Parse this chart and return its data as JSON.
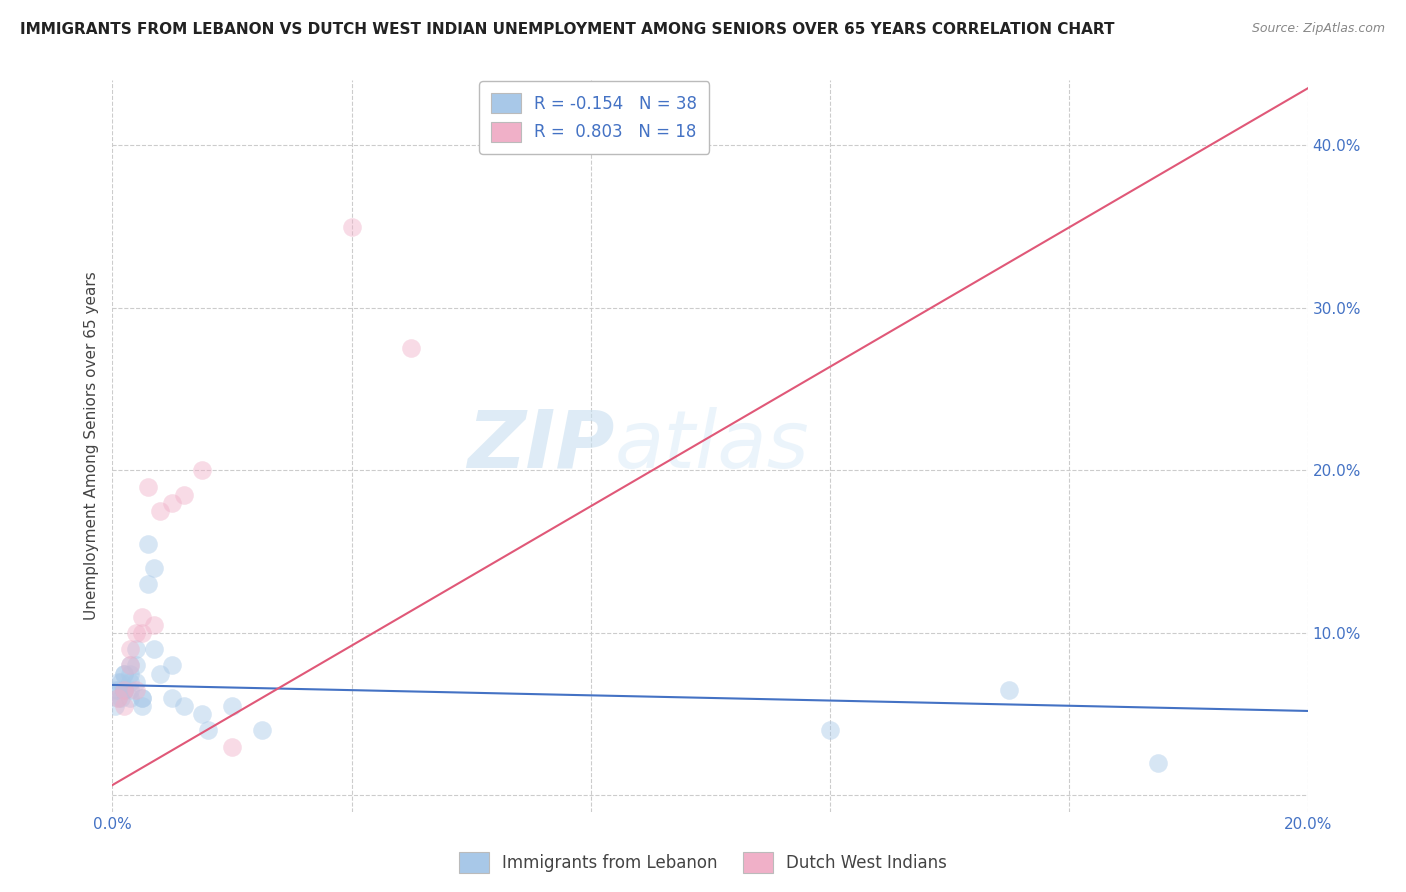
{
  "title": "IMMIGRANTS FROM LEBANON VS DUTCH WEST INDIAN UNEMPLOYMENT AMONG SENIORS OVER 65 YEARS CORRELATION CHART",
  "source": "Source: ZipAtlas.com",
  "ylabel": "Unemployment Among Seniors over 65 years",
  "xlim": [
    0.0,
    0.2
  ],
  "ylim": [
    -0.01,
    0.44
  ],
  "xticks": [
    0.0,
    0.04,
    0.08,
    0.12,
    0.16,
    0.2
  ],
  "yticks": [
    0.0,
    0.1,
    0.2,
    0.3,
    0.4
  ],
  "blue_color": "#a8c8e8",
  "pink_color": "#f0b0c8",
  "blue_line_color": "#4472c4",
  "pink_line_color": "#e05878",
  "background_color": "#ffffff",
  "blue_scatter_x": [
    0.0005,
    0.0005,
    0.001,
    0.001,
    0.001,
    0.0015,
    0.0015,
    0.002,
    0.002,
    0.002,
    0.002,
    0.002,
    0.003,
    0.003,
    0.003,
    0.003,
    0.003,
    0.004,
    0.004,
    0.004,
    0.005,
    0.005,
    0.005,
    0.006,
    0.006,
    0.007,
    0.007,
    0.008,
    0.01,
    0.01,
    0.012,
    0.015,
    0.016,
    0.02,
    0.025,
    0.12,
    0.15,
    0.175
  ],
  "blue_scatter_y": [
    0.055,
    0.065,
    0.06,
    0.065,
    0.07,
    0.06,
    0.07,
    0.065,
    0.065,
    0.075,
    0.075,
    0.065,
    0.06,
    0.065,
    0.07,
    0.075,
    0.08,
    0.07,
    0.08,
    0.09,
    0.06,
    0.06,
    0.055,
    0.13,
    0.155,
    0.14,
    0.09,
    0.075,
    0.08,
    0.06,
    0.055,
    0.05,
    0.04,
    0.055,
    0.04,
    0.04,
    0.065,
    0.02
  ],
  "pink_scatter_x": [
    0.001,
    0.002,
    0.002,
    0.003,
    0.003,
    0.004,
    0.004,
    0.005,
    0.005,
    0.006,
    0.007,
    0.008,
    0.01,
    0.012,
    0.015,
    0.02,
    0.04,
    0.05
  ],
  "pink_scatter_y": [
    0.06,
    0.055,
    0.065,
    0.08,
    0.09,
    0.065,
    0.1,
    0.1,
    0.11,
    0.19,
    0.105,
    0.175,
    0.18,
    0.185,
    0.2,
    0.03,
    0.35,
    0.275
  ],
  "blue_line_x": [
    0.0,
    0.2
  ],
  "blue_line_y": [
    0.068,
    0.052
  ],
  "pink_line_x": [
    -0.003,
    0.2
  ],
  "pink_line_y": [
    0.0,
    0.435
  ],
  "marker_size": 180,
  "marker_alpha": 0.45,
  "grid_color": "#cccccc",
  "grid_linestyle": "--"
}
